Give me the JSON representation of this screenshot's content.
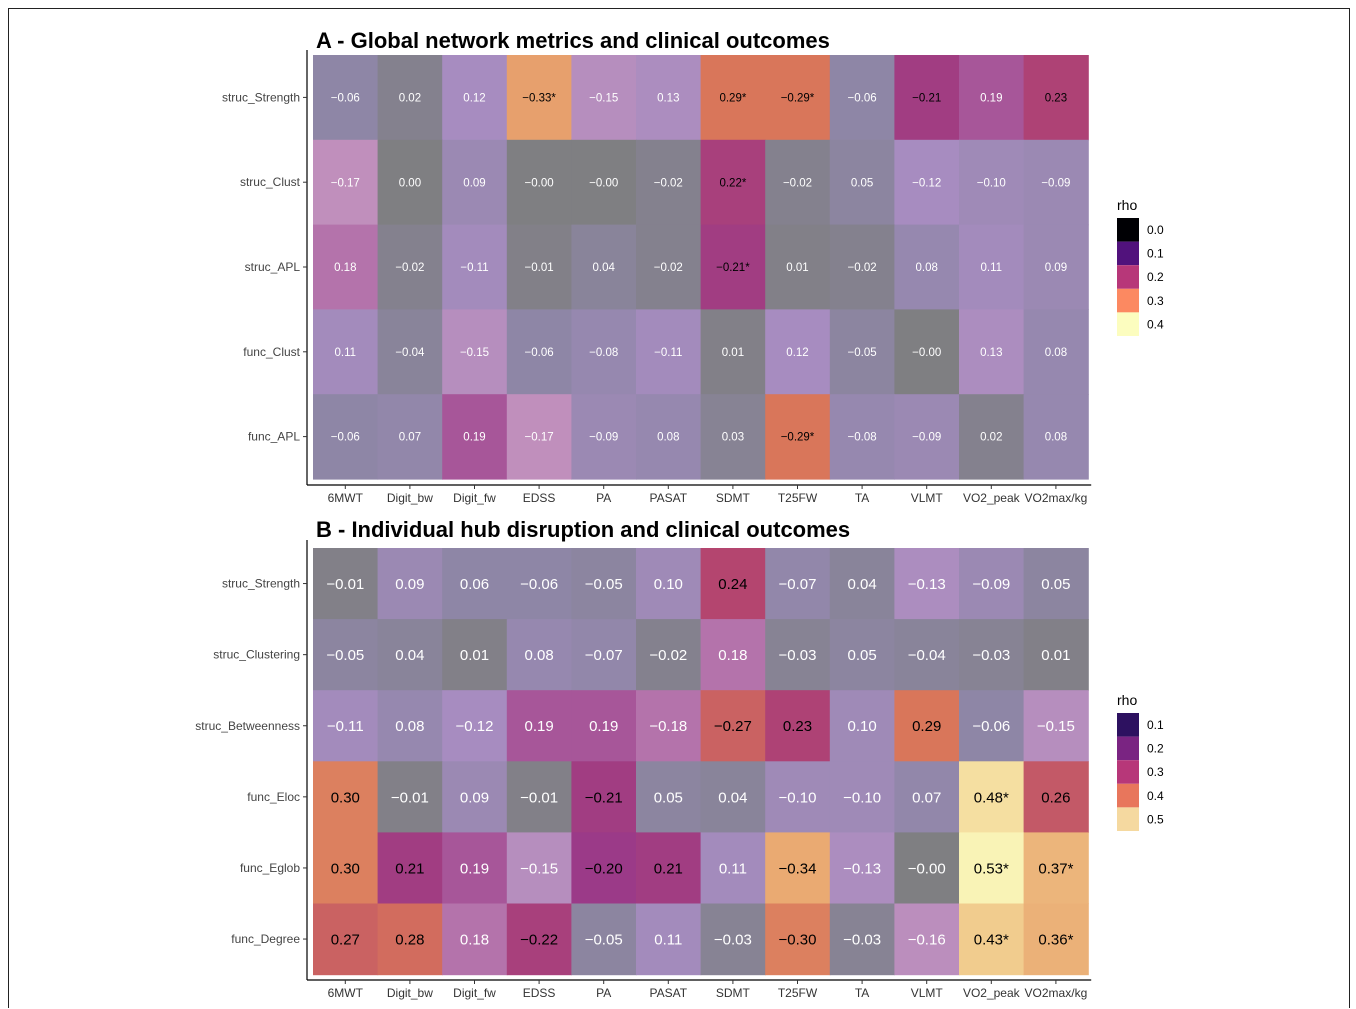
{
  "chart_data": [
    {
      "type": "heatmap",
      "title": "A - Global network metrics and clinical outcomes",
      "columns": [
        "6MWT",
        "Digit_bw",
        "Digit_fw",
        "EDSS",
        "PA",
        "PASAT",
        "SDMT",
        "T25FW",
        "TA",
        "VLMT",
        "VO2_peak",
        "VO2max/kg"
      ],
      "rows": [
        "struc_Strength",
        "struc_Clust",
        "struc_APL",
        "func_Clust",
        "func_APL"
      ],
      "labels": [
        [
          "−0.06",
          "0.02",
          "0.12",
          "−0.33*",
          "−0.15",
          "0.13",
          "0.29*",
          "−0.29*",
          "−0.06",
          "−0.21",
          "0.19",
          "0.23"
        ],
        [
          "−0.17",
          "0.00",
          "0.09",
          "−0.00",
          "−0.00",
          "−0.02",
          "0.22*",
          "−0.02",
          "0.05",
          "−0.12",
          "−0.10",
          "−0.09"
        ],
        [
          "0.18",
          "−0.02",
          "−0.11",
          "−0.01",
          "0.04",
          "−0.02",
          "−0.21*",
          "0.01",
          "−0.02",
          "0.08",
          "0.11",
          "0.09"
        ],
        [
          "0.11",
          "−0.04",
          "−0.15",
          "−0.06",
          "−0.08",
          "−0.11",
          "0.01",
          "0.12",
          "−0.05",
          "−0.00",
          "0.13",
          "0.08"
        ],
        [
          "−0.06",
          "0.07",
          "0.19",
          "−0.17",
          "−0.09",
          "0.08",
          "0.03",
          "−0.29*",
          "−0.08",
          "−0.09",
          "0.02",
          "0.08"
        ]
      ],
      "values": [
        [
          -0.06,
          0.02,
          0.12,
          -0.33,
          -0.15,
          0.13,
          0.29,
          -0.29,
          -0.06,
          -0.21,
          0.19,
          0.23
        ],
        [
          -0.17,
          0.0,
          0.09,
          -0.0,
          -0.0,
          -0.02,
          0.22,
          -0.02,
          0.05,
          -0.12,
          -0.1,
          -0.09
        ],
        [
          0.18,
          -0.02,
          -0.11,
          -0.01,
          0.04,
          -0.02,
          -0.21,
          0.01,
          -0.02,
          0.08,
          0.11,
          0.09
        ],
        [
          0.11,
          -0.04,
          -0.15,
          -0.06,
          -0.08,
          -0.11,
          0.01,
          0.12,
          -0.05,
          -0.0,
          0.13,
          0.08
        ],
        [
          -0.06,
          0.07,
          0.19,
          -0.17,
          -0.09,
          0.08,
          0.03,
          -0.29,
          -0.08,
          -0.09,
          0.02,
          0.08
        ]
      ],
      "legend": {
        "title": "rho",
        "ticks": [
          "0.0",
          "0.1",
          "0.2",
          "0.3",
          "0.4"
        ],
        "colors": [
          "#000004",
          "#51127c",
          "#b73779",
          "#fc8961",
          "#fcfdbf"
        ]
      },
      "label_size": "small"
    },
    {
      "type": "heatmap",
      "title": "B - Individual hub disruption and clinical outcomes",
      "columns": [
        "6MWT",
        "Digit_bw",
        "Digit_fw",
        "EDSS",
        "PA",
        "PASAT",
        "SDMT",
        "T25FW",
        "TA",
        "VLMT",
        "VO2_peak",
        "VO2max/kg"
      ],
      "rows": [
        "struc_Strength",
        "struc_Clustering",
        "struc_Betweenness",
        "func_Eloc",
        "func_Eglob",
        "func_Degree"
      ],
      "labels": [
        [
          "−0.01",
          "0.09",
          "0.06",
          "−0.06",
          "−0.05",
          "0.10",
          "0.24",
          "−0.07",
          "0.04",
          "−0.13",
          "−0.09",
          "0.05"
        ],
        [
          "−0.05",
          "0.04",
          "0.01",
          "0.08",
          "−0.07",
          "−0.02",
          "0.18",
          "−0.03",
          "0.05",
          "−0.04",
          "−0.03",
          "0.01"
        ],
        [
          "−0.11",
          "0.08",
          "−0.12",
          "0.19",
          "0.19",
          "−0.18",
          "−0.27",
          "0.23",
          "0.10",
          "0.29",
          "−0.06",
          "−0.15"
        ],
        [
          "0.30",
          "−0.01",
          "0.09",
          "−0.01",
          "−0.21",
          "0.05",
          "0.04",
          "−0.10",
          "−0.10",
          "0.07",
          "0.48*",
          "0.26"
        ],
        [
          "0.30",
          "0.21",
          "0.19",
          "−0.15",
          "−0.20",
          "0.21",
          "0.11",
          "−0.34",
          "−0.13",
          "−0.00",
          "0.53*",
          "0.37*"
        ],
        [
          "0.27",
          "0.28",
          "0.18",
          "−0.22",
          "−0.05",
          "0.11",
          "−0.03",
          "−0.30",
          "−0.03",
          "−0.16",
          "0.43*",
          "0.36*"
        ]
      ],
      "values": [
        [
          -0.01,
          0.09,
          0.06,
          -0.06,
          -0.05,
          0.1,
          0.24,
          -0.07,
          0.04,
          -0.13,
          -0.09,
          0.05
        ],
        [
          -0.05,
          0.04,
          0.01,
          0.08,
          -0.07,
          -0.02,
          0.18,
          -0.03,
          0.05,
          -0.04,
          -0.03,
          0.01
        ],
        [
          -0.11,
          0.08,
          -0.12,
          0.19,
          0.19,
          -0.18,
          -0.27,
          0.23,
          0.1,
          0.29,
          -0.06,
          -0.15
        ],
        [
          0.3,
          -0.01,
          0.09,
          -0.01,
          -0.21,
          0.05,
          0.04,
          -0.1,
          -0.1,
          0.07,
          0.48,
          0.26
        ],
        [
          0.3,
          0.21,
          0.19,
          -0.15,
          -0.2,
          0.21,
          0.11,
          -0.34,
          -0.13,
          -0.0,
          0.53,
          0.37
        ],
        [
          0.27,
          0.28,
          0.18,
          -0.22,
          -0.05,
          0.11,
          -0.03,
          -0.3,
          -0.03,
          -0.16,
          0.43,
          0.36
        ]
      ],
      "legend": {
        "title": "rho",
        "ticks": [
          "0.1",
          "0.2",
          "0.3",
          "0.4",
          "0.5"
        ],
        "colors": [
          "#2d1160",
          "#7a2482",
          "#b73779",
          "#e8765c",
          "#f5d9a0"
        ]
      },
      "label_size": "large"
    }
  ]
}
